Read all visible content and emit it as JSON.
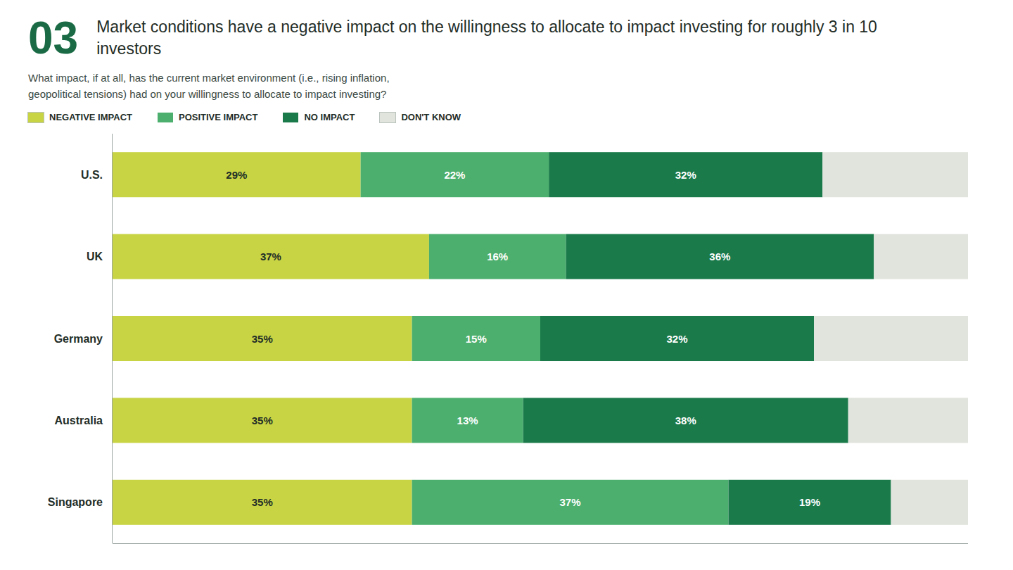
{
  "chart_data": {
    "type": "bar",
    "orientation": "horizontal",
    "stacked": true,
    "title": "Market conditions have a negative impact on the willingness to allocate to impact investing for roughly 3 in 10 investors",
    "subtitle": "What impact, if at all, has the current market environment (i.e., rising inflation,\ngeopolitical tensions) had on your willingness to allocate to impact investing?",
    "annotations": [
      "03"
    ],
    "categories": [
      "U.S.",
      "UK",
      "Germany",
      "Australia",
      "Singapore"
    ],
    "series": [
      {
        "name": "NEGATIVE IMPACT",
        "color": "#c8d444",
        "values": [
          29,
          37,
          35,
          35,
          35
        ],
        "value_labels": [
          "29%",
          "37%",
          "35%",
          "35%",
          "35%"
        ],
        "data_labels": true
      },
      {
        "name": "POSITIVE IMPACT",
        "color": "#4caf6e",
        "values": [
          22,
          16,
          15,
          13,
          37
        ],
        "value_labels": [
          "22%",
          "16%",
          "15%",
          "13%",
          "37%"
        ],
        "data_labels": true
      },
      {
        "name": "NO IMPACT",
        "color": "#1a7a4a",
        "values": [
          32,
          36,
          32,
          38,
          19
        ],
        "value_labels": [
          "32%",
          "36%",
          "32%",
          "38%",
          "19%"
        ],
        "data_labels": true
      },
      {
        "name": "DON'T KNOW",
        "color": "#e0e4dc",
        "values": [
          17,
          11,
          18,
          14,
          9
        ],
        "data_labels": false
      }
    ],
    "xlim": [
      0,
      100
    ],
    "grid": false,
    "legend": "top",
    "tick_labels": "y"
  }
}
